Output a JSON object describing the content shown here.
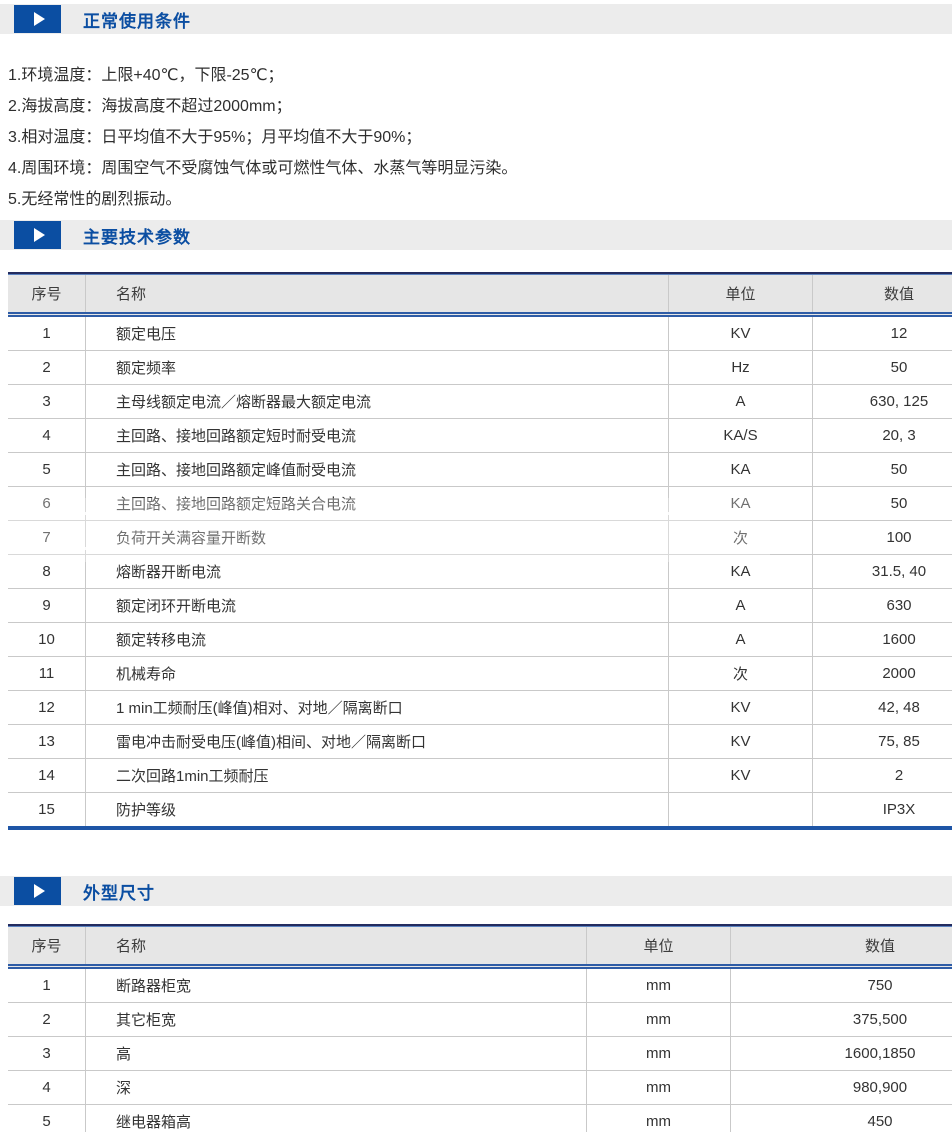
{
  "colors": {
    "accent_blue": "#0b4ea2",
    "table_line_blue": "#2e5ca6",
    "bar_background": "#ececec"
  },
  "section_normal_conditions": {
    "title": "正常使用条件"
  },
  "conditions": [
    "1.环境温度：上限+40℃，下限-25℃；",
    "2.海拔高度：海拔高度不超过2000mm；",
    "3.相对温度：日平均值不大于95%；月平均值不大于90%；",
    "4.周围环境：周围空气不受腐蚀气体或可燃性气体、水蒸气等明显污染。",
    "5.无经常性的剧烈振动。"
  ],
  "section_parameters": {
    "title": "主要技术参数"
  },
  "params_table": {
    "headers": [
      "序号",
      "名称",
      "单位",
      "数值"
    ],
    "rows": [
      [
        "1",
        "额定电压",
        "KV",
        "12"
      ],
      [
        "2",
        "额定频率",
        "Hz",
        "50"
      ],
      [
        "3",
        "主母线额定电流／熔断器最大额定电流",
        "A",
        "630, 125"
      ],
      [
        "4",
        "主回路、接地回路额定短时耐受电流",
        "KA/S",
        "20, 3"
      ],
      [
        "5",
        "主回路、接地回路额定峰值耐受电流",
        "KA",
        "50"
      ],
      [
        "6",
        "主回路、接地回路额定短路关合电流",
        "KA",
        "50"
      ],
      [
        "7",
        "负荷开关满容量开断数",
        "次",
        "100"
      ],
      [
        "8",
        "熔断器开断电流",
        "KA",
        "31.5, 40"
      ],
      [
        "9",
        "额定闭环开断电流",
        "A",
        "630"
      ],
      [
        "10",
        "额定转移电流",
        "A",
        "1600"
      ],
      [
        "11",
        "机械寿命",
        "次",
        "2000"
      ],
      [
        "12",
        "1 min工频耐压(峰值)相对、对地／隔离断口",
        "KV",
        "42, 48"
      ],
      [
        "13",
        "雷电冲击耐受电压(峰值)相间、对地／隔离断口",
        "KV",
        "75, 85"
      ],
      [
        "14",
        "二次回路1min工频耐压",
        "KV",
        "2"
      ],
      [
        "15",
        "防护等级",
        "",
        "IP3X"
      ]
    ]
  },
  "section_dimensions": {
    "title": "外型尺寸"
  },
  "dimensions_table": {
    "headers": [
      "序号",
      "名称",
      "单位",
      "数值"
    ],
    "rows": [
      [
        "1",
        "断路器柜宽",
        "mm",
        "750"
      ],
      [
        "2",
        "其它柜宽",
        "mm",
        "375,500"
      ],
      [
        "3",
        "高",
        "mm",
        "1600,1850"
      ],
      [
        "4",
        "深",
        "mm",
        "980,900"
      ],
      [
        "5",
        "继电器箱高",
        "mm",
        "450"
      ]
    ]
  }
}
